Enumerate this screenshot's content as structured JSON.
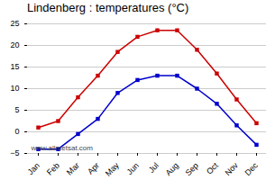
{
  "chart_data": {
    "type": "line",
    "title": "Lindenberg : temperatures (°C)",
    "categories": [
      "Jan",
      "Feb",
      "Mar",
      "Apr",
      "May",
      "Jun",
      "Jul",
      "Aug",
      "Sep",
      "Oct",
      "Nov",
      "Dec"
    ],
    "series": [
      {
        "color": "#cc0000",
        "marker": "square",
        "values": [
          1.0,
          2.5,
          8.0,
          13.0,
          18.5,
          22.0,
          23.5,
          23.5,
          19.0,
          13.5,
          7.5,
          2.0
        ]
      },
      {
        "color": "#0000cc",
        "marker": "square",
        "values": [
          -4.0,
          -4.0,
          -0.5,
          3.0,
          9.0,
          12.0,
          13.0,
          13.0,
          10.0,
          6.5,
          1.5,
          -3.0
        ]
      }
    ],
    "ylim": [
      -5,
      25
    ],
    "yticks": [
      -5,
      0,
      5,
      10,
      15,
      20,
      25
    ],
    "grid": true,
    "annotations": [
      "www.allmetsat.com"
    ]
  }
}
